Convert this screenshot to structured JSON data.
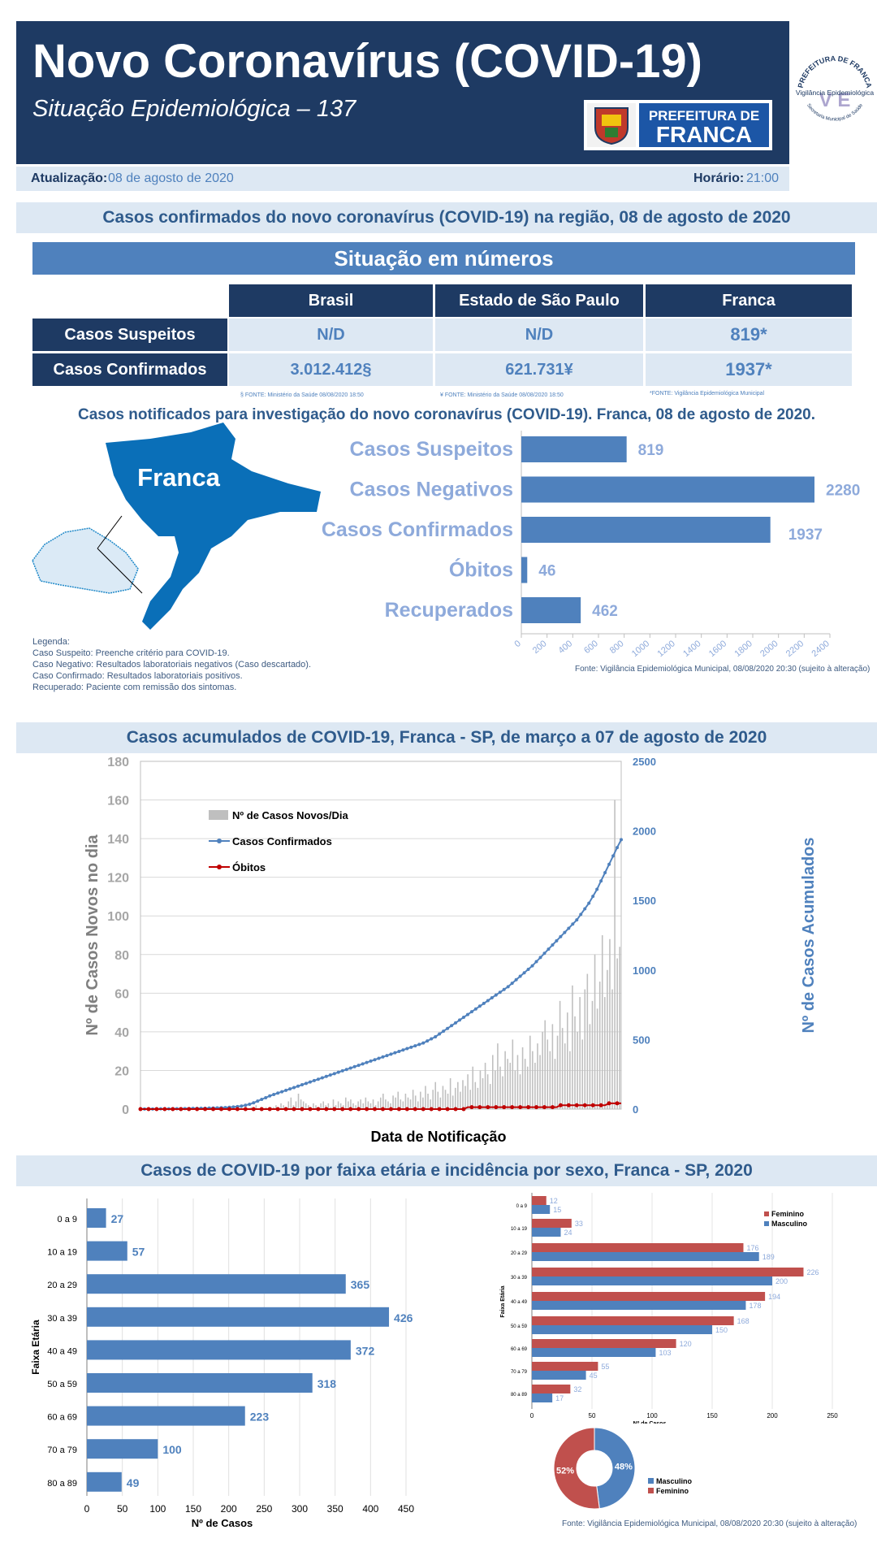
{
  "header": {
    "title": "Novo Coronavírus (COVID-19)",
    "subtitle": "Situação Epidemiológica – 137",
    "pref_logo_text1": "PREFEITURA DE",
    "pref_logo_text2": "FRANCA",
    "vig_logo_text1": "PREFEITURA DE FRANCA",
    "vig_logo_text2": "Vigilância Epidemiológica",
    "vig_logo_text3": "Secretaria Municipal de Saúde"
  },
  "update": {
    "label": "Atualização:",
    "date": "08 de agosto de 2020",
    "time_label": "Horário:",
    "time": "21:00"
  },
  "section1": {
    "title": "Casos confirmados do novo coronavírus (COVID-19) na região, 08 de agosto de 2020",
    "situation_title": "Situação em números",
    "columns": [
      "Brasil",
      "Estado de São Paulo",
      "Franca"
    ],
    "rows": [
      {
        "label": "Casos Suspeitos",
        "values": [
          "N/D",
          "N/D",
          "819*"
        ]
      },
      {
        "label": "Casos Confirmados",
        "values": [
          "3.012.412§",
          "621.731¥",
          "1937*"
        ]
      }
    ],
    "footnotes": [
      "§ FONTE: Ministério da Saúde 08/08/2020 18:50",
      "¥ FONTE: Ministério da Saúde 08/08/2020 18:50",
      "*FONTE: Vigilância Epidemiológica Municipal"
    ]
  },
  "section2": {
    "title": "Casos notificados para investigação do novo coronavírus (COVID-19). Franca, 08 de agosto de 2020.",
    "map_label": "Franca",
    "legend": [
      "Legenda:",
      "Caso Suspeito: Preenche critério para COVID-19.",
      "Caso Negativo: Resultados laboratoriais negativos (Caso descartado).",
      "Caso Confirmado: Resultados laboratoriais positivos.",
      "Recuperado: Paciente com remissão dos sintomas."
    ],
    "source": "Fonte: Vigilância Epidemiológica Municipal, 08/08/2020 20:30  (sujeito à alteração)"
  },
  "section3": {
    "title": "Casos acumulados de COVID-19, Franca - SP, de março a 07 de agosto de 2020"
  },
  "section4": {
    "title": "Casos de COVID-19 por faixa etária e incidência por sexo, Franca - SP, 2020",
    "source": "Fonte: Vigilância Epidemiológica Municipal, 08/08/2020 20:30 (sujeito à alteração)"
  },
  "colors": {
    "navy": "#1e3a63",
    "blue": "#4f81bd",
    "light": "#dde8f3",
    "red": "#c0504d",
    "gray": "#bfbfbf"
  },
  "chart_data": [
    {
      "type": "bar",
      "orientation": "horizontal",
      "categories": [
        "Casos Suspeitos",
        "Casos Negativos",
        "Casos Confirmados",
        "Óbitos",
        "Recuperados"
      ],
      "values": [
        819,
        2280,
        1937,
        46,
        462
      ],
      "xlim": [
        0,
        2400
      ],
      "xticks": [
        0,
        200,
        400,
        600,
        800,
        1000,
        1200,
        1400,
        1600,
        1800,
        2000,
        2200,
        2400
      ]
    },
    {
      "type": "line",
      "xlabel": "Data de Notificação",
      "ylabel": "Nº de Casos Novos no dia",
      "y2label": "Nº de Casos Acumulados",
      "ylim": [
        0,
        180
      ],
      "y2lim": [
        0,
        2500
      ],
      "yticks": [
        0,
        20,
        40,
        60,
        80,
        100,
        120,
        140,
        160,
        180
      ],
      "y2ticks": [
        0,
        500,
        1000,
        1500,
        2000,
        2500
      ],
      "legend": [
        "Nº de Casos Novos/Dia",
        "Casos Confirmados",
        "Óbitos"
      ],
      "legend_position": "top-left",
      "series": [
        {
          "name": "Nº de Casos Novos/Dia",
          "kind": "bar",
          "values": [
            0,
            0,
            0,
            0,
            0,
            0,
            0,
            0,
            0,
            0,
            0,
            0,
            0,
            0,
            0,
            0,
            0,
            0,
            0,
            0,
            0,
            0,
            0,
            0,
            0,
            1,
            0,
            1,
            0,
            0,
            1,
            0,
            0,
            1,
            1,
            0,
            0,
            1,
            0,
            0,
            1,
            0,
            0,
            0,
            1,
            0,
            2,
            0,
            1,
            0,
            1,
            0,
            1,
            1,
            2,
            1,
            3,
            2,
            1,
            4,
            6,
            2,
            4,
            8,
            5,
            4,
            3,
            2,
            1,
            3,
            2,
            1,
            3,
            4,
            2,
            3,
            1,
            5,
            2,
            4,
            3,
            2,
            6,
            4,
            5,
            3,
            2,
            4,
            5,
            3,
            6,
            4,
            3,
            5,
            2,
            4,
            6,
            8,
            5,
            4,
            3,
            7,
            6,
            9,
            5,
            4,
            8,
            6,
            5,
            10,
            7,
            4,
            9,
            6,
            12,
            8,
            5,
            10,
            14,
            9,
            6,
            12,
            10,
            8,
            16,
            7,
            11,
            14,
            9,
            15,
            12,
            18,
            10,
            22,
            14,
            11,
            20,
            16,
            24,
            18,
            13,
            28,
            20,
            34,
            22,
            17,
            30,
            26,
            24,
            36,
            20,
            28,
            18,
            32,
            26,
            22,
            38,
            30,
            24,
            34,
            28,
            40,
            46,
            36,
            30,
            44,
            26,
            38,
            56,
            42,
            34,
            50,
            30,
            64,
            48,
            40,
            58,
            36,
            62,
            70,
            44,
            56,
            80,
            52,
            66,
            90,
            58,
            72,
            88,
            62,
            160,
            78,
            84
          ]
        },
        {
          "name": "Casos Confirmados",
          "kind": "line",
          "axis": "y2",
          "values": [
            1,
            1,
            1,
            1,
            1,
            2,
            2,
            2,
            3,
            3,
            3,
            4,
            4,
            5,
            5,
            6,
            6,
            7,
            8,
            9,
            10,
            11,
            13,
            15,
            18,
            22,
            28,
            35,
            45,
            58,
            70,
            82,
            95,
            105,
            115,
            125,
            135,
            145,
            155,
            165,
            175,
            185,
            195,
            205,
            215,
            225,
            235,
            245,
            255,
            265,
            275,
            285,
            295,
            305,
            315,
            325,
            335,
            345,
            355,
            365,
            375,
            385,
            395,
            405,
            415,
            425,
            435,
            445,
            455,
            465,
            475,
            490,
            505,
            520,
            540,
            560,
            580,
            600,
            620,
            640,
            660,
            680,
            700,
            720,
            740,
            760,
            780,
            800,
            820,
            840,
            860,
            880,
            905,
            930,
            955,
            980,
            1005,
            1030,
            1060,
            1090,
            1120,
            1150,
            1180,
            1210,
            1240,
            1270,
            1300,
            1330,
            1360,
            1400,
            1440,
            1480,
            1530,
            1580,
            1640,
            1700,
            1760,
            1820,
            1880,
            1937
          ]
        },
        {
          "name": "Óbitos",
          "kind": "line",
          "values": [
            0,
            0,
            0,
            0,
            0,
            0,
            0,
            0,
            0,
            0,
            0,
            0,
            0,
            0,
            0,
            0,
            0,
            0,
            0,
            0,
            0,
            0,
            0,
            0,
            0,
            0,
            0,
            0,
            0,
            0,
            0,
            0,
            0,
            0,
            0,
            0,
            0,
            0,
            0,
            0,
            0,
            0,
            0,
            0,
            0,
            0,
            0,
            0,
            0,
            0,
            0,
            0,
            0,
            0,
            0,
            0,
            0,
            0,
            0,
            0,
            0,
            0,
            0,
            0,
            0,
            0,
            0,
            0,
            0,
            0,
            0,
            0,
            0,
            0,
            0,
            0,
            0,
            0,
            0,
            0,
            0,
            1,
            1,
            1,
            1,
            1,
            1,
            1,
            1,
            1,
            1,
            1,
            1,
            1,
            1,
            1,
            1,
            1,
            1,
            1,
            1,
            1,
            1,
            1,
            2,
            2,
            2,
            2,
            2,
            2,
            2,
            2,
            2,
            2,
            2,
            2,
            3,
            3,
            3,
            3
          ]
        }
      ]
    },
    {
      "type": "bar",
      "orientation": "horizontal",
      "ylabel": "Faixa Etária",
      "xlabel": "Nº de Casos",
      "categories": [
        "0 a 9",
        "10 a 19",
        "20 a 29",
        "30 a 39",
        "40 a 49",
        "50 a 59",
        "60  a 69",
        "70 a 79",
        "80 a 89"
      ],
      "values": [
        27,
        57,
        365,
        426,
        372,
        318,
        223,
        100,
        49
      ],
      "xlim": [
        0,
        450
      ],
      "xticks": [
        0,
        50,
        100,
        150,
        200,
        250,
        300,
        350,
        400,
        450
      ]
    },
    {
      "type": "bar",
      "orientation": "horizontal",
      "ylabel": "Faixa Etária",
      "xlabel": "Nº de Casos",
      "categories": [
        "0 a 9",
        "10 a 19",
        "20 a 29",
        "30 a 39",
        "40 a 49",
        "50 a 59",
        "60 a 69",
        "70 a 79",
        "80 a 89"
      ],
      "xlim": [
        0,
        250
      ],
      "xticks": [
        0,
        50,
        100,
        150,
        200,
        250
      ],
      "legend_position": "top-right",
      "series": [
        {
          "name": "Feminino",
          "values": [
            12,
            33,
            176,
            226,
            194,
            168,
            120,
            55,
            32
          ]
        },
        {
          "name": "Masculino",
          "values": [
            15,
            24,
            189,
            200,
            178,
            150,
            103,
            45,
            17
          ]
        }
      ]
    },
    {
      "type": "pie",
      "labels": [
        "Masculino",
        "Feminino"
      ],
      "values": [
        48,
        52
      ],
      "value_labels": [
        "48%",
        "52%"
      ],
      "legend_position": "right"
    }
  ]
}
